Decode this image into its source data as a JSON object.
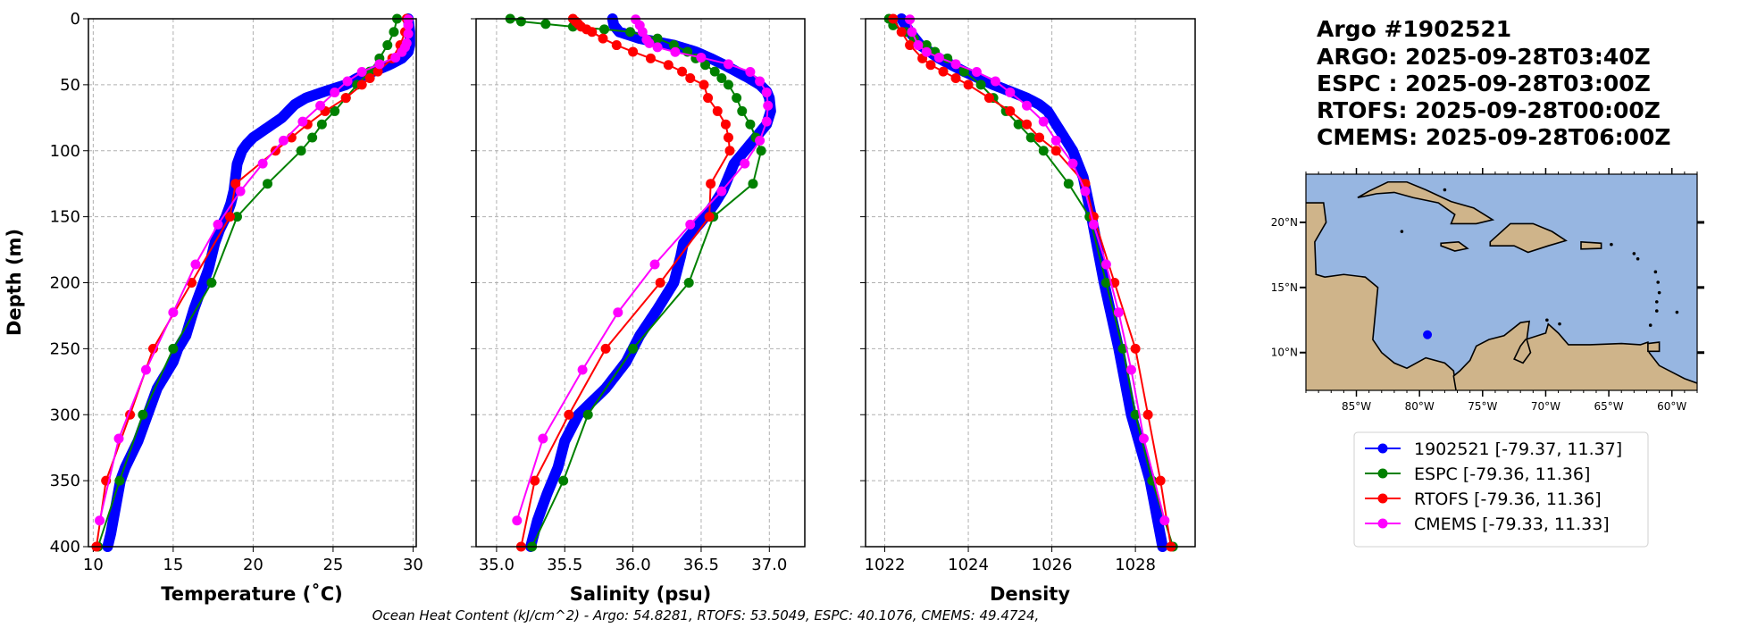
{
  "title_lines": [
    "Argo #1902521",
    "ARGO: 2025-09-28T03:40Z",
    "ESPC : 2025-09-28T03:00Z",
    "RTOFS: 2025-09-28T00:00Z",
    "CMEMS: 2025-09-28T06:00Z"
  ],
  "footer": "Ocean Heat Content (kJ/cm^2) - Argo: 54.8281,  RTOFS: 53.5049,  ESPC: 40.1076,  CMEMS: 49.4724,",
  "legend": [
    {
      "label": "1902521 [-79.37, 11.37]",
      "color": "#0000ff"
    },
    {
      "label": "ESPC [-79.36, 11.36]",
      "color": "#008000"
    },
    {
      "label": "RTOFS [-79.36, 11.36]",
      "color": "#ff0000"
    },
    {
      "label": "CMEMS [-79.33, 11.33]",
      "color": "#ff00ff"
    }
  ],
  "map": {
    "lon_ticks": [
      -85,
      -80,
      -75,
      -70,
      -65,
      -60
    ],
    "lon_labels": [
      "85°W",
      "80°W",
      "75°W",
      "70°W",
      "65°W",
      "60°W"
    ],
    "lat_ticks": [
      10,
      15,
      20
    ],
    "lat_labels": [
      "10°N",
      "15°N",
      "20°N"
    ],
    "lon_range": [
      -89.0,
      -58.0
    ],
    "lat_range": [
      7.1,
      23.7
    ],
    "argo_position": [
      -79.37,
      11.37
    ],
    "ocean_color": "#97b6e1",
    "land_color": "#cfb48a"
  },
  "chart_data": [
    {
      "type": "line",
      "xlabel": "Temperature (˚C)",
      "ylabel": "Depth (m)",
      "xlim": [
        9.7,
        30.2
      ],
      "ylim": [
        400,
        0
      ],
      "grid": true,
      "xticks": [
        10,
        15,
        20,
        25,
        30
      ],
      "xtick_labels": [
        "10",
        "15",
        "20",
        "25",
        "30"
      ],
      "yticks": [
        0,
        50,
        100,
        150,
        200,
        250,
        300,
        350,
        400
      ],
      "ytick_labels": [
        "0",
        "50",
        "100",
        "150",
        "200",
        "250",
        "300",
        "350",
        "400"
      ],
      "series": [
        {
          "name": "1902521",
          "depth": [
            0,
            10,
            20,
            25,
            30,
            35,
            40,
            45,
            50,
            55,
            60,
            65,
            70,
            75,
            80,
            85,
            90,
            95,
            100,
            110,
            120,
            130,
            140,
            150,
            160,
            170,
            180,
            190,
            200,
            220,
            240,
            250,
            260,
            280,
            300,
            320,
            340,
            350,
            370,
            390,
            400
          ],
          "values": [
            29.7,
            29.8,
            29.8,
            29.7,
            29.3,
            28.5,
            27.5,
            26.5,
            25.8,
            24.5,
            23.3,
            22.6,
            22.2,
            21.8,
            21.2,
            20.6,
            20.0,
            19.6,
            19.3,
            19.0,
            18.9,
            18.8,
            18.6,
            18.3,
            17.9,
            17.6,
            17.4,
            17.2,
            16.9,
            16.3,
            15.8,
            15.3,
            15.0,
            14.0,
            13.4,
            12.8,
            12.0,
            11.7,
            11.4,
            11.1,
            10.9
          ]
        },
        {
          "name": "ESPC",
          "depth": [
            0,
            10,
            20,
            30,
            40,
            50,
            60,
            70,
            80,
            90,
            100,
            125,
            150,
            200,
            250,
            300,
            350,
            400
          ],
          "values": [
            29.0,
            28.8,
            28.4,
            27.9,
            27.3,
            26.5,
            25.8,
            25.1,
            24.3,
            23.7,
            23.0,
            20.9,
            19.0,
            17.4,
            15.0,
            13.1,
            11.65,
            10.3
          ]
        },
        {
          "name": "RTOFS",
          "depth": [
            0,
            10,
            20,
            30,
            40,
            45,
            50,
            60,
            70,
            80,
            90,
            100,
            125,
            150,
            200,
            250,
            300,
            350,
            400
          ],
          "values": [
            29.6,
            29.5,
            29.2,
            28.7,
            27.8,
            27.3,
            26.8,
            25.8,
            24.5,
            23.4,
            22.4,
            21.4,
            18.9,
            18.55,
            16.15,
            13.75,
            12.3,
            10.8,
            10.2
          ]
        },
        {
          "name": "CMEMS",
          "depth": [
            0.5,
            5,
            11.4,
            18.5,
            21.6,
            25.2,
            29.4,
            34.4,
            40.3,
            47.4,
            55.8,
            65.8,
            77.9,
            92.3,
            109.7,
            130.7,
            155.9,
            186.1,
            222.5,
            266.0,
            318.1,
            380.2
          ],
          "values": [
            29.7,
            29.7,
            29.7,
            29.6,
            29.5,
            29.3,
            28.9,
            27.9,
            26.8,
            25.9,
            25.1,
            24.2,
            23.1,
            21.9,
            20.6,
            19.2,
            17.8,
            16.4,
            15.0,
            13.3,
            11.6,
            10.4
          ]
        }
      ]
    },
    {
      "type": "line",
      "xlabel": "Salinity (psu)",
      "xlim": [
        34.85,
        37.26
      ],
      "ylim": [
        400,
        0
      ],
      "grid": true,
      "xticks": [
        35.0,
        35.5,
        36.0,
        36.5,
        37.0
      ],
      "xtick_labels": [
        "35.0",
        "35.5",
        "36.0",
        "36.5",
        "37.0"
      ],
      "series": [
        {
          "name": "1902521",
          "depth": [
            0,
            5,
            10,
            15,
            20,
            25,
            30,
            35,
            40,
            45,
            50,
            55,
            60,
            70,
            80,
            90,
            100,
            110,
            120,
            130,
            140,
            150,
            160,
            170,
            180,
            200,
            220,
            240,
            260,
            280,
            300,
            320,
            340,
            360,
            380,
            400
          ],
          "values": [
            35.85,
            35.86,
            35.9,
            36.05,
            36.3,
            36.46,
            36.57,
            36.67,
            36.76,
            36.85,
            36.93,
            36.98,
            37.0,
            37.01,
            36.98,
            36.9,
            36.82,
            36.74,
            36.7,
            36.66,
            36.6,
            36.53,
            36.45,
            36.37,
            36.35,
            36.3,
            36.18,
            36.05,
            35.95,
            35.8,
            35.6,
            35.5,
            35.45,
            35.37,
            35.3,
            35.25
          ]
        },
        {
          "name": "ESPC",
          "depth": [
            0,
            2,
            4,
            6,
            8,
            10,
            15,
            20,
            25,
            30,
            35,
            40,
            45,
            50,
            60,
            70,
            80,
            90,
            100,
            125,
            150,
            200,
            250,
            300,
            350,
            400
          ],
          "values": [
            35.1,
            35.18,
            35.36,
            35.56,
            35.79,
            35.98,
            36.18,
            36.3,
            36.4,
            36.46,
            36.53,
            36.6,
            36.65,
            36.7,
            36.76,
            36.8,
            36.86,
            36.9,
            36.94,
            36.88,
            36.59,
            36.41,
            36.0,
            35.67,
            35.49,
            35.26
          ]
        },
        {
          "name": "RTOFS",
          "depth": [
            0,
            2,
            4,
            6,
            8,
            10,
            15,
            20,
            25,
            30,
            35,
            40,
            45,
            50,
            60,
            70,
            80,
            90,
            100,
            125,
            150,
            200,
            250,
            300,
            350,
            400
          ],
          "values": [
            35.56,
            35.58,
            35.6,
            35.62,
            35.66,
            35.7,
            35.78,
            35.88,
            36.0,
            36.13,
            36.26,
            36.36,
            36.42,
            36.52,
            36.55,
            36.62,
            36.68,
            36.7,
            36.71,
            36.57,
            36.56,
            36.2,
            35.8,
            35.53,
            35.28,
            35.18
          ]
        },
        {
          "name": "CMEMS",
          "depth": [
            0.5,
            5,
            10,
            15.8,
            18.5,
            21.6,
            25.2,
            29.4,
            34.4,
            40.3,
            47.4,
            55.8,
            65.8,
            77.9,
            92.3,
            109.7,
            130.7,
            155.9,
            186.1,
            222.5,
            266.0,
            318.1,
            380.2
          ],
          "values": [
            36.02,
            36.05,
            36.07,
            36.1,
            36.12,
            36.18,
            36.31,
            36.5,
            36.7,
            36.86,
            36.93,
            36.98,
            36.99,
            36.98,
            36.93,
            36.82,
            36.65,
            36.42,
            36.16,
            35.89,
            35.63,
            35.34,
            35.15
          ]
        }
      ]
    },
    {
      "type": "line",
      "xlabel": "Density",
      "xlim": [
        1021.54,
        1029.43
      ],
      "ylim": [
        400,
        0
      ],
      "grid": true,
      "xticks": [
        1022,
        1024,
        1026,
        1028
      ],
      "xtick_labels": [
        "1022",
        "1024",
        "1026",
        "1028"
      ],
      "series": [
        {
          "name": "1902521",
          "depth": [
            0,
            10,
            20,
            30,
            40,
            50,
            55,
            60,
            65,
            70,
            80,
            90,
            100,
            120,
            150,
            200,
            250,
            300,
            350,
            400
          ],
          "values": [
            1022.4,
            1022.6,
            1022.85,
            1023.3,
            1023.9,
            1024.6,
            1025.0,
            1025.4,
            1025.7,
            1025.9,
            1026.1,
            1026.3,
            1026.5,
            1026.75,
            1026.95,
            1027.25,
            1027.6,
            1027.9,
            1028.35,
            1028.65
          ]
        },
        {
          "name": "ESPC",
          "depth": [
            0,
            5,
            10,
            15,
            20,
            25,
            30,
            40,
            50,
            60,
            70,
            80,
            90,
            100,
            125,
            150,
            200,
            250,
            300,
            350,
            400
          ],
          "values": [
            1022.1,
            1022.2,
            1022.5,
            1022.7,
            1023.0,
            1023.2,
            1023.5,
            1023.9,
            1024.3,
            1024.6,
            1024.9,
            1025.2,
            1025.5,
            1025.8,
            1026.4,
            1026.9,
            1027.3,
            1027.7,
            1028.0,
            1028.4,
            1028.9
          ]
        },
        {
          "name": "RTOFS",
          "depth": [
            0,
            10,
            20,
            30,
            35,
            40,
            45,
            50,
            60,
            70,
            80,
            90,
            100,
            125,
            150,
            200,
            250,
            300,
            350,
            400
          ],
          "values": [
            1022.2,
            1022.4,
            1022.6,
            1022.9,
            1023.1,
            1023.4,
            1023.7,
            1024.0,
            1024.5,
            1025.0,
            1025.4,
            1025.7,
            1026.1,
            1026.8,
            1027.0,
            1027.5,
            1028.0,
            1028.3,
            1028.6,
            1028.85
          ]
        },
        {
          "name": "CMEMS",
          "depth": [
            0.5,
            10,
            20,
            25.2,
            29.4,
            34.4,
            40.3,
            47.4,
            55.8,
            65.8,
            77.9,
            92.3,
            109.7,
            130.7,
            155.9,
            186.1,
            222.5,
            266.0,
            318.1,
            380.2
          ],
          "values": [
            1022.6,
            1022.65,
            1022.8,
            1023.0,
            1023.3,
            1023.7,
            1024.2,
            1024.65,
            1025.0,
            1025.4,
            1025.8,
            1026.1,
            1026.5,
            1026.8,
            1027.0,
            1027.3,
            1027.6,
            1027.9,
            1028.2,
            1028.7
          ]
        }
      ]
    }
  ]
}
